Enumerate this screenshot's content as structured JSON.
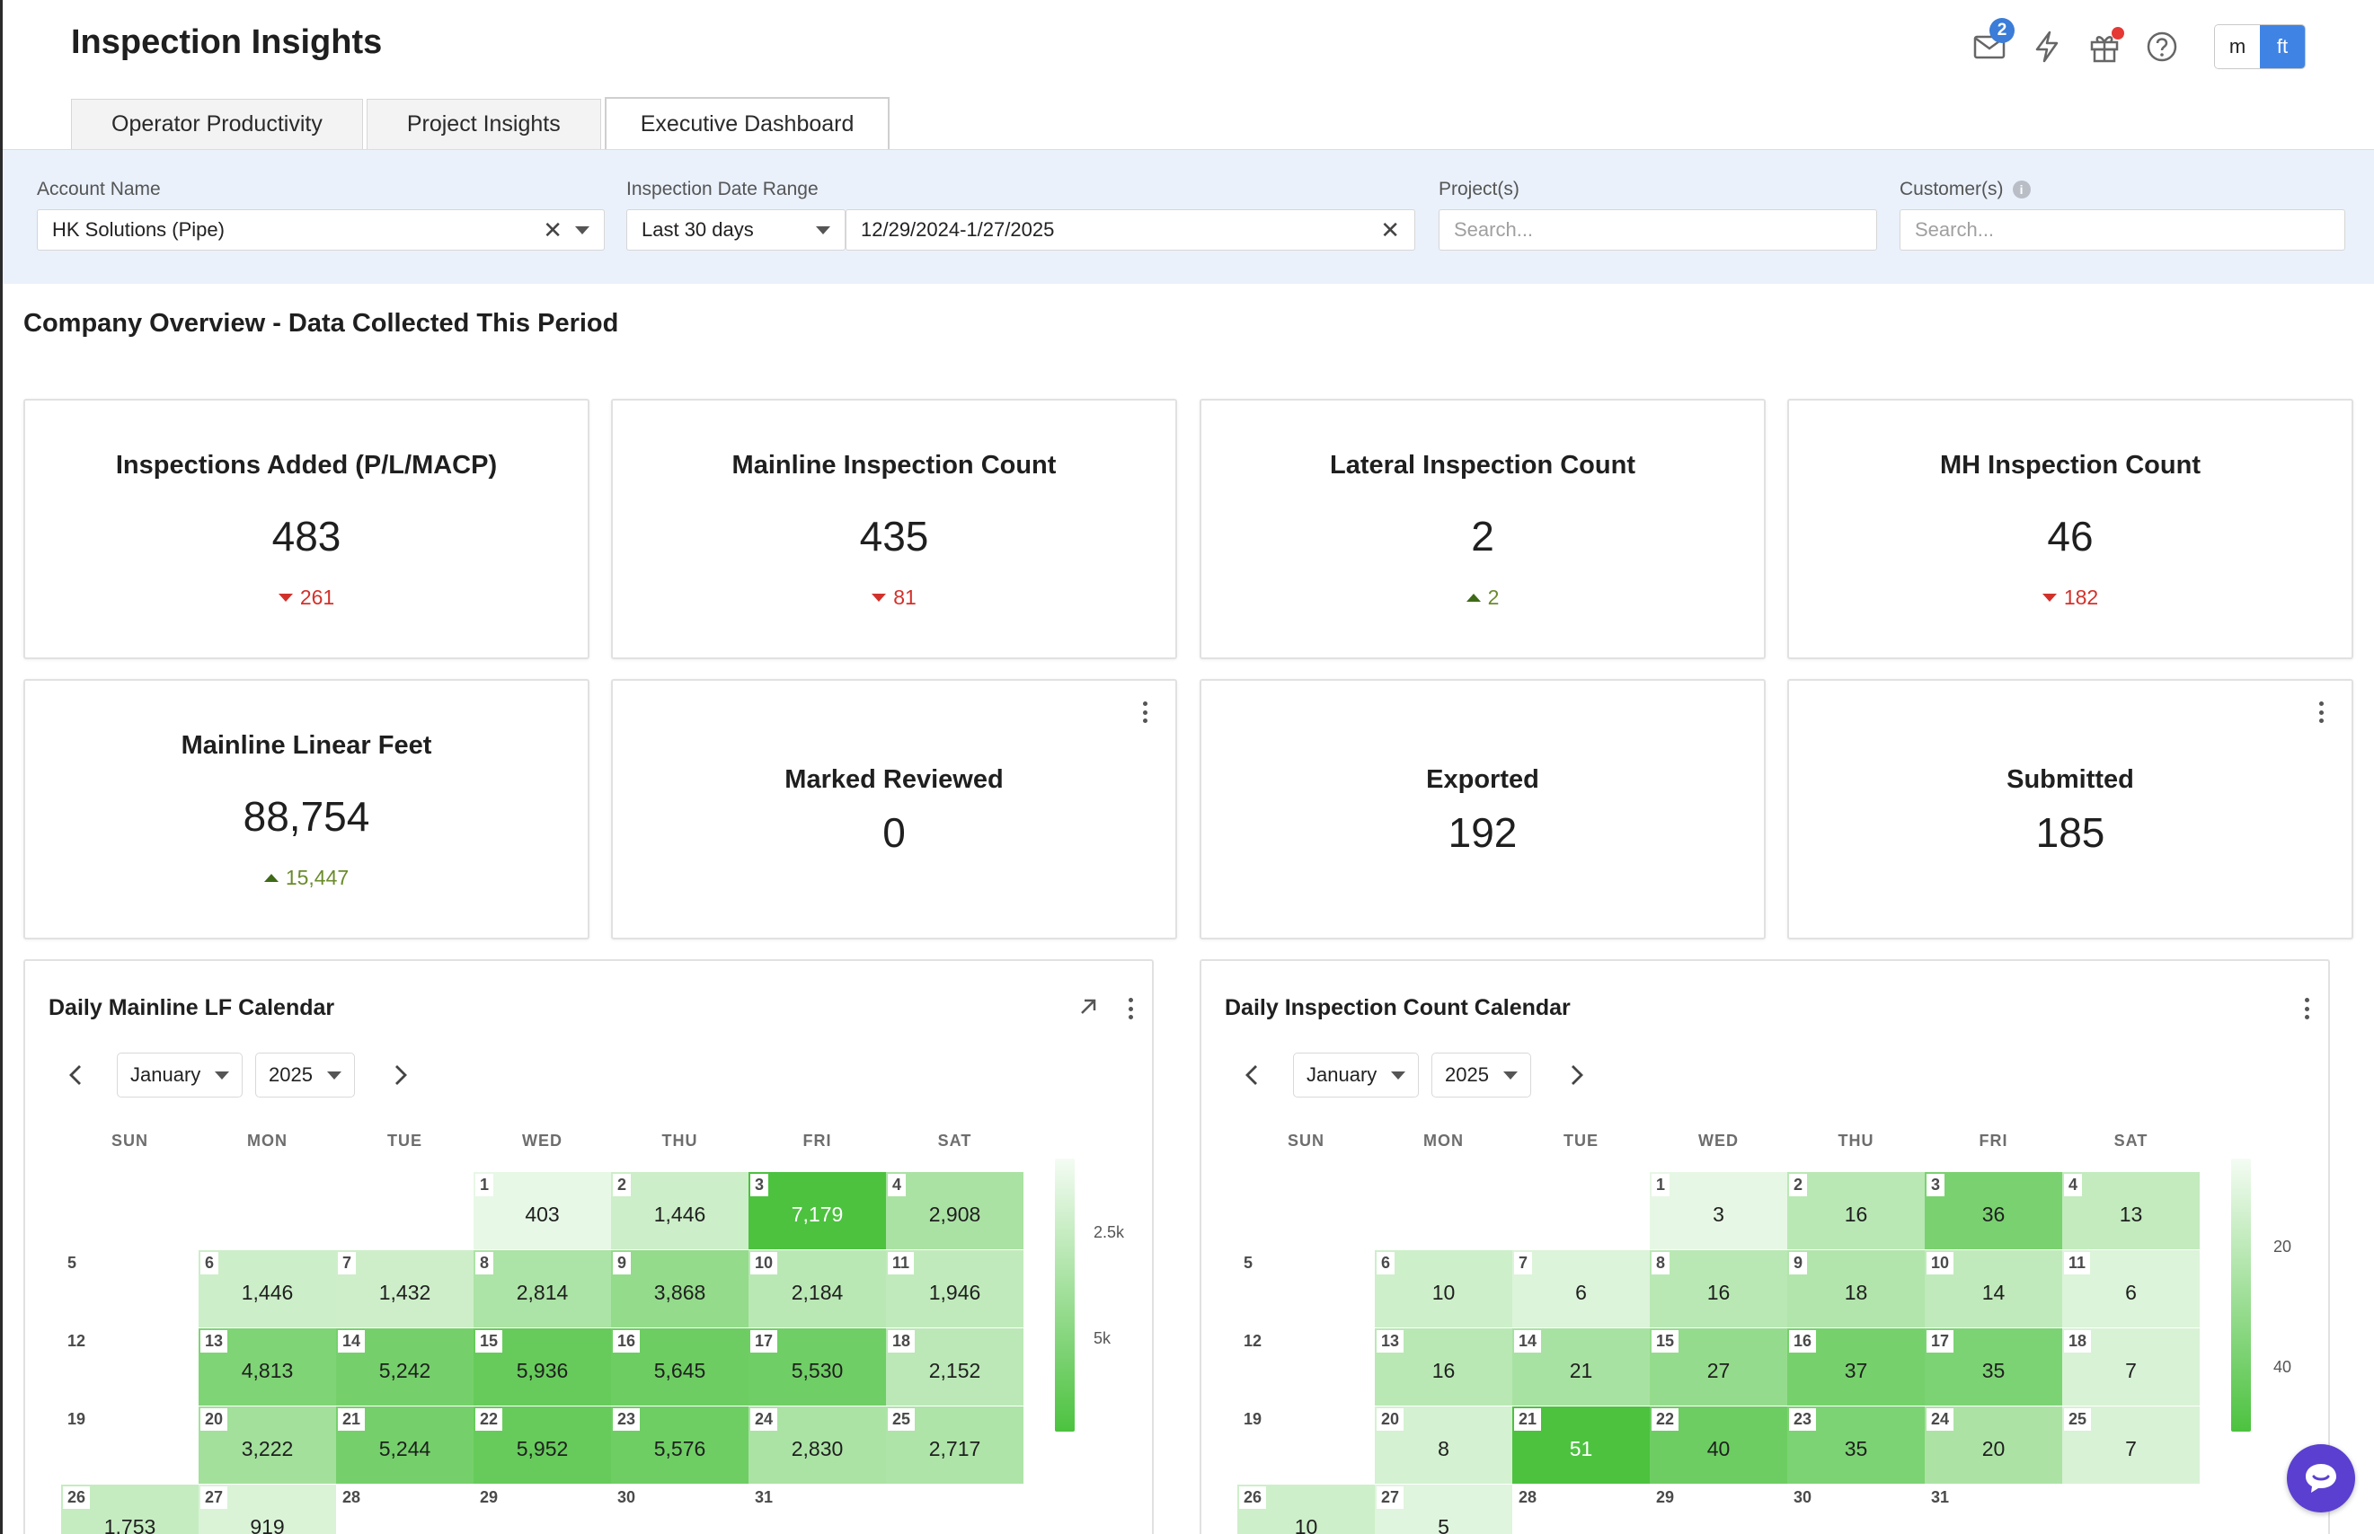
{
  "header": {
    "title": "Inspection Insights",
    "mail_badge": "2",
    "units": {
      "metric": "m",
      "imperial": "ft",
      "selected": "ft"
    },
    "icons": [
      "mail-icon",
      "lightning-icon",
      "gift-icon",
      "help-icon"
    ]
  },
  "tabs": [
    {
      "label": "Operator Productivity",
      "active": false
    },
    {
      "label": "Project Insights",
      "active": false
    },
    {
      "label": "Executive Dashboard",
      "active": true
    }
  ],
  "filters": {
    "account": {
      "label": "Account Name",
      "value": "HK Solutions (Pipe)"
    },
    "date_range": {
      "label": "Inspection Date Range",
      "preset": "Last 30 days",
      "value": "12/29/2024-1/27/2025"
    },
    "projects": {
      "label": "Project(s)",
      "placeholder": "Search..."
    },
    "customers": {
      "label": "Customer(s)",
      "placeholder": "Search..."
    }
  },
  "overview": {
    "title": "Company Overview - Data Collected This Period",
    "kpis": [
      {
        "title": "Inspections Added (P/L/MACP)",
        "value": "483",
        "delta": "261",
        "direction": "down"
      },
      {
        "title": "Mainline Inspection Count",
        "value": "435",
        "delta": "81",
        "direction": "down"
      },
      {
        "title": "Lateral Inspection Count",
        "value": "2",
        "delta": "2",
        "direction": "up"
      },
      {
        "title": "MH Inspection Count",
        "value": "46",
        "delta": "182",
        "direction": "down"
      },
      {
        "title": "Mainline Linear Feet",
        "value": "88,754",
        "delta": "15,447",
        "direction": "up"
      },
      {
        "title": "Marked Reviewed",
        "value": "0"
      },
      {
        "title": "Exported",
        "value": "192"
      },
      {
        "title": "Submitted",
        "value": "185"
      }
    ]
  },
  "calendars": [
    {
      "title": "Daily Mainline LF Calendar",
      "month": "January",
      "year": "2025",
      "weekdays": [
        "SUN",
        "MON",
        "TUE",
        "WED",
        "THU",
        "FRI",
        "SAT"
      ],
      "legend_ticks": [
        "2.5k",
        "5k"
      ],
      "legend_max": 7179,
      "days": [
        {
          "day": "1",
          "value": "403",
          "n": 403
        },
        {
          "day": "2",
          "value": "1,446",
          "n": 1446
        },
        {
          "day": "3",
          "value": "7,179",
          "n": 7179
        },
        {
          "day": "4",
          "value": "2,908",
          "n": 2908
        },
        {
          "day": "5",
          "value": "",
          "n": 0
        },
        {
          "day": "6",
          "value": "1,446",
          "n": 1446
        },
        {
          "day": "7",
          "value": "1,432",
          "n": 1432
        },
        {
          "day": "8",
          "value": "2,814",
          "n": 2814
        },
        {
          "day": "9",
          "value": "3,868",
          "n": 3868
        },
        {
          "day": "10",
          "value": "2,184",
          "n": 2184
        },
        {
          "day": "11",
          "value": "1,946",
          "n": 1946
        },
        {
          "day": "12",
          "value": "",
          "n": 0
        },
        {
          "day": "13",
          "value": "4,813",
          "n": 4813
        },
        {
          "day": "14",
          "value": "5,242",
          "n": 5242
        },
        {
          "day": "15",
          "value": "5,936",
          "n": 5936
        },
        {
          "day": "16",
          "value": "5,645",
          "n": 5645
        },
        {
          "day": "17",
          "value": "5,530",
          "n": 5530
        },
        {
          "day": "18",
          "value": "2,152",
          "n": 2152
        },
        {
          "day": "19",
          "value": "",
          "n": 0
        },
        {
          "day": "20",
          "value": "3,222",
          "n": 3222
        },
        {
          "day": "21",
          "value": "5,244",
          "n": 5244
        },
        {
          "day": "22",
          "value": "5,952",
          "n": 5952
        },
        {
          "day": "23",
          "value": "5,576",
          "n": 5576
        },
        {
          "day": "24",
          "value": "2,830",
          "n": 2830
        },
        {
          "day": "25",
          "value": "2,717",
          "n": 2717
        },
        {
          "day": "26",
          "value": "1,753",
          "n": 1753
        },
        {
          "day": "27",
          "value": "919",
          "n": 919
        },
        {
          "day": "28",
          "value": "",
          "n": 0
        },
        {
          "day": "29",
          "value": "",
          "n": 0
        },
        {
          "day": "30",
          "value": "",
          "n": 0
        },
        {
          "day": "31",
          "value": "",
          "n": 0
        }
      ]
    },
    {
      "title": "Daily Inspection Count Calendar",
      "month": "January",
      "year": "2025",
      "weekdays": [
        "SUN",
        "MON",
        "TUE",
        "WED",
        "THU",
        "FRI",
        "SAT"
      ],
      "legend_ticks": [
        "20",
        "40"
      ],
      "legend_max": 51,
      "days": [
        {
          "day": "1",
          "value": "3",
          "n": 3
        },
        {
          "day": "2",
          "value": "16",
          "n": 16
        },
        {
          "day": "3",
          "value": "36",
          "n": 36
        },
        {
          "day": "4",
          "value": "13",
          "n": 13
        },
        {
          "day": "5",
          "value": "",
          "n": 0
        },
        {
          "day": "6",
          "value": "10",
          "n": 10
        },
        {
          "day": "7",
          "value": "6",
          "n": 6
        },
        {
          "day": "8",
          "value": "16",
          "n": 16
        },
        {
          "day": "9",
          "value": "18",
          "n": 18
        },
        {
          "day": "10",
          "value": "14",
          "n": 14
        },
        {
          "day": "11",
          "value": "6",
          "n": 6
        },
        {
          "day": "12",
          "value": "",
          "n": 0
        },
        {
          "day": "13",
          "value": "16",
          "n": 16
        },
        {
          "day": "14",
          "value": "21",
          "n": 21
        },
        {
          "day": "15",
          "value": "27",
          "n": 27
        },
        {
          "day": "16",
          "value": "37",
          "n": 37
        },
        {
          "day": "17",
          "value": "35",
          "n": 35
        },
        {
          "day": "18",
          "value": "7",
          "n": 7
        },
        {
          "day": "19",
          "value": "",
          "n": 0
        },
        {
          "day": "20",
          "value": "8",
          "n": 8
        },
        {
          "day": "21",
          "value": "51",
          "n": 51
        },
        {
          "day": "22",
          "value": "40",
          "n": 40
        },
        {
          "day": "23",
          "value": "35",
          "n": 35
        },
        {
          "day": "24",
          "value": "20",
          "n": 20
        },
        {
          "day": "25",
          "value": "7",
          "n": 7
        },
        {
          "day": "26",
          "value": "10",
          "n": 10
        },
        {
          "day": "27",
          "value": "5",
          "n": 5
        },
        {
          "day": "28",
          "value": "",
          "n": 0
        },
        {
          "day": "29",
          "value": "",
          "n": 0
        },
        {
          "day": "30",
          "value": "",
          "n": 0
        },
        {
          "day": "31",
          "value": "",
          "n": 0
        }
      ]
    }
  ],
  "colors": {
    "accent": "#3f84e5",
    "filter_bg": "#eaf1fb",
    "heat_low": "#f4fcf3",
    "heat_high": "#4cc23f",
    "delta_down": "#d2312b",
    "delta_up": "#6b8b2c",
    "chat": "#5b3fd0"
  }
}
